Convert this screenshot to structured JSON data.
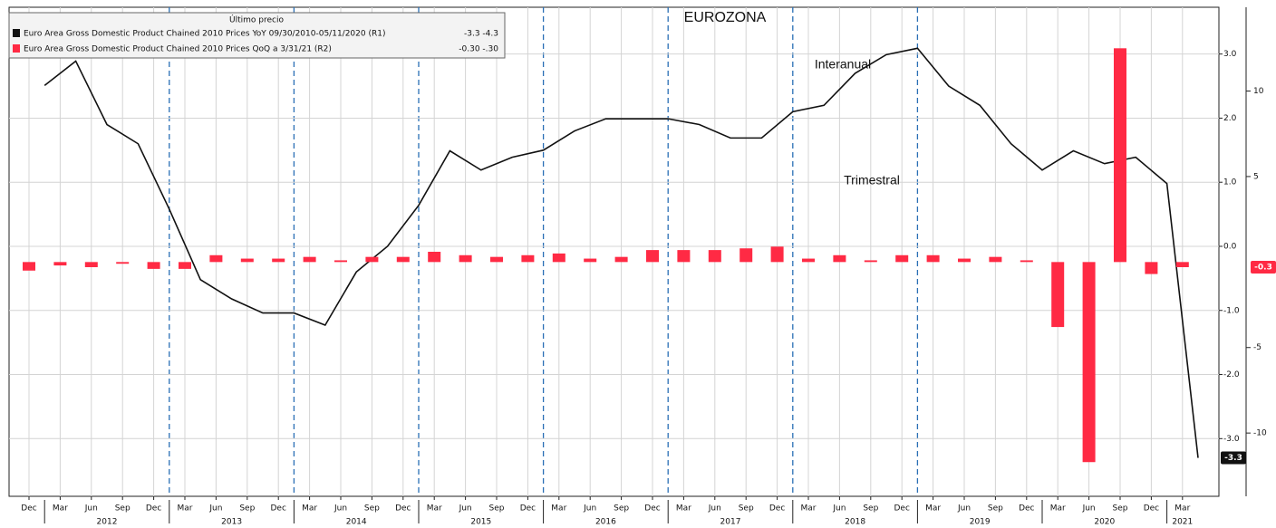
{
  "chart_data": {
    "type": "bar_line",
    "title": "EUROZONA",
    "legend_title": "Último precio",
    "annotations": [
      {
        "text": "Interanual",
        "color": "#111111"
      },
      {
        "text": "Trimestral",
        "color": "#ff2a44"
      }
    ],
    "categories": [
      "Dec",
      "Mar",
      "Jun",
      "Sep",
      "Dec",
      "Mar",
      "Jun",
      "Sep",
      "Dec",
      "Mar",
      "Jun",
      "Sep",
      "Dec",
      "Mar",
      "Jun",
      "Sep",
      "Dec",
      "Mar",
      "Jun",
      "Sep",
      "Dec",
      "Mar",
      "Jun",
      "Sep",
      "Dec",
      "Mar",
      "Jun",
      "Sep",
      "Dec",
      "Mar",
      "Jun",
      "Sep",
      "Dec",
      "Mar",
      "Jun",
      "Sep",
      "Dec",
      "Mar"
    ],
    "years": [
      "2012",
      "2013",
      "2014",
      "2015",
      "2016",
      "2017",
      "2018",
      "2019",
      "2020",
      "2021"
    ],
    "series": [
      {
        "name": "Euro Area Gross Domestic Product Chained 2010 Prices YoY 09/30/2010-05/11/2020  (R1)",
        "legend_value": "-3.3   -4.3",
        "color": "#111111",
        "type": "line",
        "axis": "y",
        "values": [
          2.51,
          2.89,
          1.9,
          1.6,
          0.58,
          -0.52,
          -0.82,
          -1.04,
          -1.04,
          -1.23,
          -0.4,
          0.0,
          0.64,
          1.49,
          1.19,
          1.39,
          1.5,
          1.8,
          1.99,
          1.99,
          1.99,
          1.9,
          1.69,
          1.69,
          2.1,
          2.2,
          2.7,
          2.99,
          3.09,
          2.5,
          2.2,
          1.6,
          1.19,
          1.49,
          1.29,
          1.39,
          0.98,
          -3.3
        ],
        "last_label": "-3.3"
      },
      {
        "name": "Euro Area Gross Domestic Product Chained 2010 Prices QoQ  a 3/31/21  (R2)",
        "legend_value": "-0.30   -.30",
        "color": "#ff2a44",
        "type": "bar",
        "axis": "y2",
        "values": [
          -0.5,
          -0.2,
          -0.3,
          -0.1,
          -0.4,
          -0.4,
          0.4,
          0.2,
          0.2,
          0.3,
          0.1,
          0.3,
          0.3,
          0.6,
          0.4,
          0.3,
          0.4,
          0.5,
          0.2,
          0.3,
          0.7,
          0.7,
          0.7,
          0.8,
          0.9,
          0.2,
          0.4,
          0.1,
          0.4,
          0.4,
          0.2,
          0.3,
          0.1,
          -3.8,
          -11.7,
          12.5,
          -0.7,
          -0.3
        ],
        "last_label": "-0.3"
      }
    ],
    "ylim": [
      -3.9,
      3.73
    ],
    "yticks": [
      {
        "value": 3,
        "label": "3.0"
      },
      {
        "value": 2,
        "label": "2.0"
      },
      {
        "value": 1,
        "label": "1.0"
      },
      {
        "value": 0,
        "label": "0.0"
      },
      {
        "value": -1,
        "label": "-1.0"
      },
      {
        "value": -2,
        "label": "-2.0"
      },
      {
        "value": -3,
        "label": "-3.0"
      }
    ],
    "y2lim": [
      -13.7,
      14.9
    ],
    "y2ticks": [
      10,
      5,
      -5,
      -10
    ],
    "grid": true
  }
}
